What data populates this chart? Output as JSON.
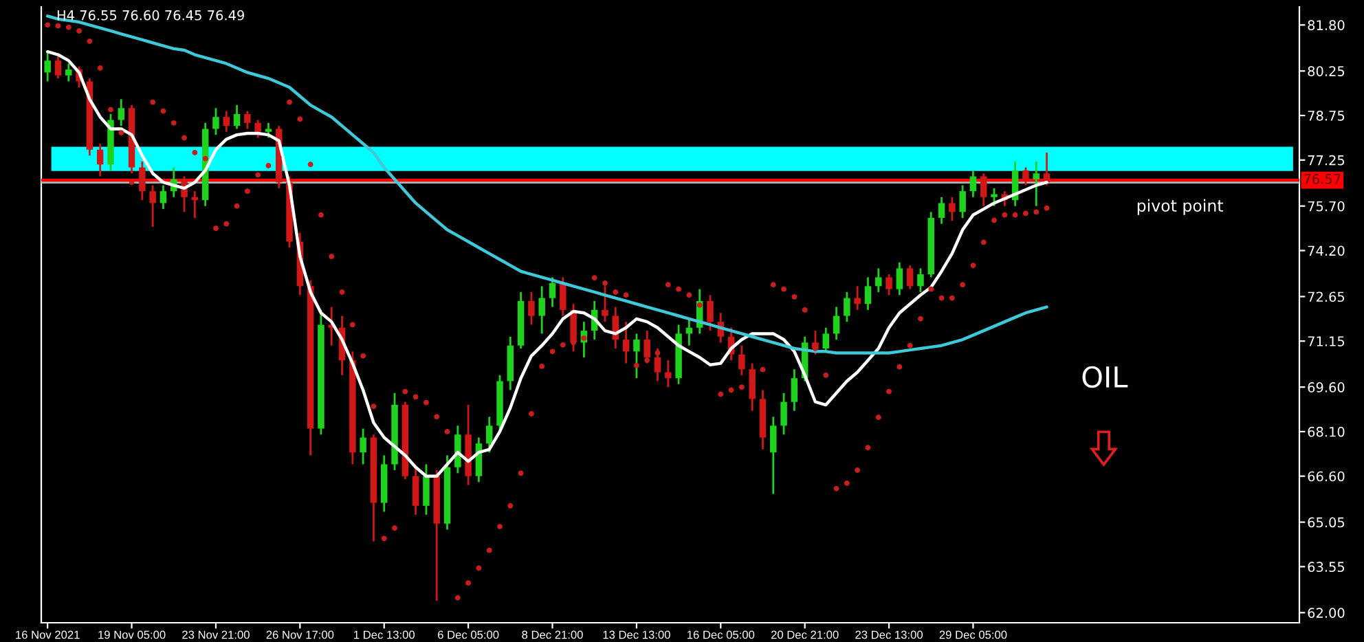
{
  "chart_data": {
    "type": "candlestick",
    "title": "H4 76.55 76.60 76.45 76.49",
    "categories": [
      "16 Nov 2021",
      null,
      null,
      null,
      null,
      null,
      null,
      null,
      "19 Nov 05:00",
      null,
      null,
      null,
      null,
      null,
      null,
      null,
      "23 Nov 21:00",
      null,
      null,
      null,
      null,
      null,
      null,
      null,
      "26 Nov 17:00",
      null,
      null,
      null,
      null,
      null,
      null,
      null,
      "1 Dec 13:00",
      null,
      null,
      null,
      null,
      null,
      null,
      null,
      "6 Dec 05:00",
      null,
      null,
      null,
      null,
      null,
      null,
      null,
      "8 Dec 21:00",
      null,
      null,
      null,
      null,
      null,
      null,
      null,
      "13 Dec 13:00",
      null,
      null,
      null,
      null,
      null,
      null,
      null,
      "16 Dec 05:00",
      null,
      null,
      null,
      null,
      null,
      null,
      null,
      "20 Dec 21:00",
      null,
      null,
      null,
      null,
      null,
      null,
      null,
      "23 Dec 13:00",
      null,
      null,
      null,
      null,
      null,
      null,
      null,
      "29 Dec 05:00",
      null,
      null,
      null,
      null,
      null,
      null,
      null
    ],
    "ohlc": [
      [
        80.2,
        80.9,
        79.9,
        80.6
      ],
      [
        80.6,
        80.8,
        80.0,
        80.1
      ],
      [
        80.1,
        80.5,
        79.9,
        80.3
      ],
      [
        80.3,
        80.4,
        79.7,
        79.9
      ],
      [
        79.9,
        80.0,
        77.4,
        77.6
      ],
      [
        77.6,
        77.8,
        76.7,
        77.1
      ],
      [
        77.1,
        78.8,
        76.9,
        78.6
      ],
      [
        78.6,
        79.3,
        78.4,
        79.0
      ],
      [
        79.0,
        79.1,
        76.8,
        77.0
      ],
      [
        77.0,
        77.2,
        75.9,
        76.2
      ],
      [
        76.2,
        76.4,
        75.0,
        75.8
      ],
      [
        75.8,
        76.4,
        75.6,
        76.2
      ],
      [
        76.2,
        77.0,
        76.0,
        76.6
      ],
      [
        76.6,
        76.7,
        75.5,
        76.0
      ],
      [
        76.0,
        76.2,
        75.3,
        75.9
      ],
      [
        75.9,
        78.5,
        75.7,
        78.3
      ],
      [
        78.3,
        79.0,
        78.1,
        78.7
      ],
      [
        78.7,
        78.9,
        78.2,
        78.4
      ],
      [
        78.4,
        79.1,
        78.3,
        78.8
      ],
      [
        78.8,
        78.9,
        78.3,
        78.5
      ],
      [
        78.5,
        78.6,
        78.0,
        78.2
      ],
      [
        78.2,
        78.5,
        78.0,
        78.3
      ],
      [
        78.3,
        78.4,
        76.3,
        76.5
      ],
      [
        76.5,
        76.7,
        74.3,
        74.5
      ],
      [
        74.5,
        74.8,
        72.7,
        73.0
      ],
      [
        73.0,
        73.2,
        67.3,
        68.2
      ],
      [
        68.2,
        72.2,
        68.0,
        71.7
      ],
      [
        71.7,
        72.3,
        71.0,
        71.6
      ],
      [
        71.6,
        72.0,
        70.0,
        70.5
      ],
      [
        70.5,
        70.8,
        67.0,
        67.4
      ],
      [
        67.4,
        68.2,
        67.0,
        67.9
      ],
      [
        67.9,
        68.0,
        64.4,
        65.7
      ],
      [
        65.7,
        67.3,
        65.4,
        67.0
      ],
      [
        67.0,
        69.4,
        66.8,
        69.0
      ],
      [
        69.0,
        69.1,
        66.5,
        66.6
      ],
      [
        66.6,
        66.9,
        65.3,
        65.6
      ],
      [
        65.6,
        67.0,
        65.3,
        66.6
      ],
      [
        66.6,
        66.8,
        62.4,
        65.0
      ],
      [
        65.0,
        67.3,
        64.8,
        66.9
      ],
      [
        66.9,
        68.3,
        66.7,
        68.0
      ],
      [
        68.0,
        69.0,
        66.3,
        66.6
      ],
      [
        66.6,
        67.9,
        66.4,
        67.7
      ],
      [
        67.7,
        68.6,
        67.4,
        68.3
      ],
      [
        68.3,
        70.0,
        68.1,
        69.8
      ],
      [
        69.8,
        71.3,
        69.5,
        71.0
      ],
      [
        71.0,
        72.8,
        70.9,
        72.5
      ],
      [
        72.5,
        72.8,
        71.7,
        72.0
      ],
      [
        72.0,
        73.0,
        71.4,
        72.6
      ],
      [
        72.6,
        73.3,
        72.3,
        73.1
      ],
      [
        73.1,
        73.3,
        72.0,
        72.2
      ],
      [
        72.2,
        72.4,
        70.8,
        71.1
      ],
      [
        71.1,
        71.8,
        70.6,
        71.5
      ],
      [
        71.5,
        72.5,
        71.2,
        72.2
      ],
      [
        72.2,
        73.0,
        71.8,
        72.0
      ],
      [
        72.0,
        72.3,
        70.9,
        71.2
      ],
      [
        71.2,
        71.8,
        70.4,
        70.8
      ],
      [
        70.8,
        71.4,
        69.9,
        71.2
      ],
      [
        71.2,
        71.5,
        70.4,
        70.6
      ],
      [
        70.6,
        70.9,
        69.8,
        70.1
      ],
      [
        70.1,
        70.5,
        69.6,
        69.9
      ],
      [
        69.9,
        71.7,
        69.7,
        71.4
      ],
      [
        71.4,
        71.9,
        71.0,
        71.6
      ],
      [
        71.6,
        72.9,
        71.4,
        72.5
      ],
      [
        72.5,
        72.7,
        71.5,
        71.8
      ],
      [
        71.8,
        72.1,
        71.1,
        71.3
      ],
      [
        71.3,
        71.6,
        70.5,
        70.7
      ],
      [
        70.7,
        71.0,
        70.0,
        70.2
      ],
      [
        70.2,
        70.4,
        68.8,
        69.2
      ],
      [
        69.2,
        69.5,
        67.5,
        67.9
      ],
      [
        67.4,
        68.6,
        66.0,
        68.3
      ],
      [
        68.3,
        69.4,
        68.0,
        69.1
      ],
      [
        69.1,
        70.2,
        68.8,
        69.9
      ],
      [
        69.9,
        71.3,
        69.8,
        71.1
      ],
      [
        71.1,
        71.5,
        70.7,
        70.9
      ],
      [
        70.9,
        71.6,
        70.8,
        71.4
      ],
      [
        71.4,
        72.3,
        71.2,
        72.0
      ],
      [
        72.0,
        72.8,
        71.8,
        72.6
      ],
      [
        72.6,
        73.0,
        72.2,
        72.4
      ],
      [
        72.4,
        73.3,
        72.2,
        73.0
      ],
      [
        73.0,
        73.6,
        72.8,
        73.3
      ],
      [
        73.3,
        73.4,
        72.7,
        72.9
      ],
      [
        72.9,
        73.8,
        72.7,
        73.6
      ],
      [
        73.6,
        73.7,
        72.9,
        73.0
      ],
      [
        73.0,
        73.6,
        72.8,
        73.4
      ],
      [
        73.4,
        75.5,
        73.3,
        75.3
      ],
      [
        75.3,
        76.0,
        75.1,
        75.8
      ],
      [
        75.8,
        76.0,
        75.2,
        75.5
      ],
      [
        75.5,
        76.4,
        75.3,
        76.2
      ],
      [
        76.2,
        76.9,
        76.0,
        76.7
      ],
      [
        76.7,
        76.8,
        75.7,
        76.0
      ],
      [
        76.0,
        76.3,
        75.7,
        76.1
      ],
      [
        76.1,
        76.2,
        75.7,
        75.9
      ],
      [
        75.9,
        77.2,
        75.7,
        76.9
      ],
      [
        76.9,
        77.0,
        76.4,
        76.6
      ],
      [
        76.6,
        77.2,
        75.7,
        76.8
      ],
      [
        76.8,
        77.5,
        76.4,
        76.5
      ]
    ],
    "colors": [
      "#1ed21e",
      "#d01818",
      "#1ed21e",
      "#d01818",
      "#d01818",
      "#d01818",
      "#1ed21e",
      "#1ed21e",
      "#d01818",
      "#d01818",
      "#d01818",
      "#1ed21e",
      "#1ed21e",
      "#d01818",
      "#d01818",
      "#1ed21e",
      "#1ed21e",
      "#d01818",
      "#1ed21e",
      "#d01818",
      "#d01818",
      "#1ed21e",
      "#d01818",
      "#d01818",
      "#d01818",
      "#d01818",
      "#1ed21e",
      "#d01818",
      "#d01818",
      "#d01818",
      "#1ed21e",
      "#d01818",
      "#1ed21e",
      "#1ed21e",
      "#d01818",
      "#d01818",
      "#1ed21e",
      "#d01818",
      "#1ed21e",
      "#1ed21e",
      "#d01818",
      "#1ed21e",
      "#1ed21e",
      "#1ed21e",
      "#1ed21e",
      "#1ed21e",
      "#d01818",
      "#1ed21e",
      "#1ed21e",
      "#d01818",
      "#d01818",
      "#1ed21e",
      "#1ed21e",
      "#d01818",
      "#d01818",
      "#d01818",
      "#1ed21e",
      "#d01818",
      "#d01818",
      "#d01818",
      "#1ed21e",
      "#1ed21e",
      "#1ed21e",
      "#d01818",
      "#d01818",
      "#d01818",
      "#d01818",
      "#d01818",
      "#d01818",
      "#1ed21e",
      "#1ed21e",
      "#1ed21e",
      "#1ed21e",
      "#d01818",
      "#1ed21e",
      "#1ed21e",
      "#1ed21e",
      "#d01818",
      "#1ed21e",
      "#1ed21e",
      "#d01818",
      "#1ed21e",
      "#d01818",
      "#1ed21e",
      "#1ed21e",
      "#1ed21e",
      "#d01818",
      "#1ed21e",
      "#1ed21e",
      "#d01818",
      "#1ed21e",
      "#d01818",
      "#1ed21e",
      "#d01818",
      "#1ed21e",
      "#d01818"
    ],
    "series": [
      {
        "type": "line",
        "color": "#ffffff",
        "values": [
          80.9,
          80.8,
          80.6,
          80.2,
          79.3,
          78.7,
          78.3,
          78.3,
          78.1,
          77.4,
          76.8,
          76.5,
          76.4,
          76.3,
          76.5,
          76.9,
          77.6,
          77.95,
          78.1,
          78.15,
          78.15,
          78.1,
          77.9,
          76.4,
          74.0,
          72.8,
          72.1,
          71.8,
          71.2,
          70.4,
          69.5,
          68.4,
          67.9,
          67.6,
          67.3,
          66.9,
          66.6,
          66.6,
          67.0,
          67.4,
          67.1,
          67.4,
          67.5,
          68.1,
          68.9,
          69.9,
          70.65,
          71.0,
          71.4,
          71.9,
          72.15,
          72.1,
          71.9,
          71.5,
          71.4,
          71.6,
          71.9,
          71.8,
          71.6,
          71.3,
          71.0,
          70.8,
          70.6,
          70.35,
          70.4,
          70.9,
          71.2,
          71.4,
          71.4,
          71.4,
          71.2,
          70.8,
          70.0,
          69.1,
          69.0,
          69.4,
          69.8,
          70.1,
          70.5,
          70.9,
          71.6,
          72.1,
          72.4,
          72.7,
          72.96,
          73.5,
          74.1,
          74.9,
          75.4,
          75.6,
          75.8,
          75.95,
          76.1,
          76.25,
          76.4,
          76.5
        ]
      },
      {
        "type": "line",
        "color": "#3ec8d8",
        "values": [
          82.1,
          82.0,
          81.95,
          81.9,
          81.8,
          81.7,
          81.6,
          81.5,
          81.4,
          81.3,
          81.2,
          81.1,
          81.0,
          80.95,
          80.8,
          80.7,
          80.6,
          80.5,
          80.35,
          80.2,
          80.1,
          80.0,
          79.85,
          79.7,
          79.4,
          79.1,
          78.9,
          78.7,
          78.4,
          78.1,
          77.8,
          77.5,
          77.0,
          76.6,
          76.2,
          75.8,
          75.5,
          75.2,
          74.9,
          74.7,
          74.5,
          74.3,
          74.1,
          73.9,
          73.7,
          73.5,
          73.4,
          73.3,
          73.2,
          73.1,
          73.0,
          72.9,
          72.8,
          72.7,
          72.6,
          72.5,
          72.4,
          72.3,
          72.2,
          72.1,
          72.0,
          71.9,
          71.8,
          71.7,
          71.6,
          71.5,
          71.4,
          71.3,
          71.2,
          71.1,
          71.0,
          70.9,
          70.85,
          70.8,
          70.8,
          70.75,
          70.75,
          70.75,
          70.75,
          70.75,
          70.75,
          70.8,
          70.85,
          70.9,
          70.95,
          71.0,
          71.1,
          71.2,
          71.35,
          71.5,
          71.65,
          71.8,
          71.95,
          72.1,
          72.2,
          72.3
        ]
      },
      {
        "type": "scatter",
        "color": "#c81e1e",
        "marker": "circle",
        "values": [
          81.8,
          81.77,
          81.72,
          81.6,
          81.25,
          80.35,
          78.95,
          78.17,
          76.5,
          76.55,
          79.2,
          78.9,
          78.5,
          78.0,
          77.5,
          77.3,
          74.95,
          75.1,
          75.7,
          76.2,
          76.75,
          77.06,
          77.34,
          79.2,
          78.63,
          77.1,
          75.4,
          74.0,
          72.8,
          71.7,
          70.65,
          68.95,
          64.5,
          64.85,
          69.45,
          69.27,
          69.08,
          68.6,
          68.1,
          62.5,
          63.0,
          63.5,
          64.1,
          64.9,
          65.6,
          66.7,
          68.7,
          70.3,
          70.8,
          71.02,
          71.1,
          71.25,
          73.28,
          73.1,
          72.8,
          72.7,
          70.33,
          70.5,
          70.75,
          73.05,
          72.9,
          72.7,
          72.36,
          71.99,
          69.36,
          69.5,
          69.6,
          69.87,
          70.19,
          73.05,
          72.9,
          72.64,
          72.2,
          70.9,
          70.0,
          66.18,
          66.36,
          66.8,
          67.56,
          68.58,
          69.45,
          70.28,
          71.0,
          71.9,
          72.9,
          72.6,
          72.6,
          73.05,
          73.7,
          74.48,
          75.22,
          75.4,
          75.4,
          75.45,
          75.5,
          75.63
        ]
      }
    ],
    "ylim": [
      61.66,
      82.41
    ],
    "yticks": [
      {
        "value": 81.8,
        "label": "81.80"
      },
      80.25,
      78.75,
      77.25,
      {
        "value": 75.7,
        "label": "75.70"
      },
      {
        "value": 74.2,
        "label": "74.20"
      },
      72.65,
      71.15,
      {
        "value": 69.6,
        "label": "69.60"
      },
      {
        "value": 68.1,
        "label": "68.10"
      },
      {
        "value": 66.6,
        "label": "66.60"
      },
      65.05,
      63.55,
      {
        "value": 62.0,
        "label": "62.00"
      }
    ],
    "bands": [
      {
        "axis": "y",
        "from": 76.88,
        "to": 77.7,
        "color": "#00ffff"
      }
    ],
    "ref_lines": [
      {
        "axis": "y",
        "value": 76.57,
        "label": "76.57",
        "color": "#ff0000"
      },
      {
        "axis": "y",
        "value": 76.49,
        "color": "#b4b4b4"
      }
    ],
    "annotations": [
      "pivot point",
      "OIL"
    ]
  }
}
